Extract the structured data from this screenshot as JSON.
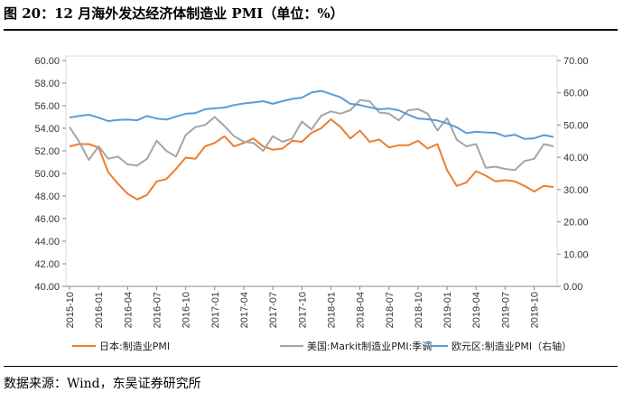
{
  "header": {
    "title": "图 20：12 月海外发达经济体制造业 PMI（单位：%）"
  },
  "footer": {
    "source": "数据来源：Wind，东吴证券研究所"
  },
  "chart_data": {
    "type": "line",
    "title": "12 月海外发达经济体制造业 PMI",
    "x": [
      "2015-10",
      "2015-11",
      "2015-12",
      "2016-01",
      "2016-02",
      "2016-03",
      "2016-04",
      "2016-05",
      "2016-06",
      "2016-07",
      "2016-08",
      "2016-09",
      "2016-10",
      "2016-11",
      "2016-12",
      "2017-01",
      "2017-02",
      "2017-03",
      "2017-04",
      "2017-05",
      "2017-06",
      "2017-07",
      "2017-08",
      "2017-09",
      "2017-10",
      "2017-11",
      "2017-12",
      "2018-01",
      "2018-02",
      "2018-03",
      "2018-04",
      "2018-05",
      "2018-06",
      "2018-07",
      "2018-08",
      "2018-09",
      "2018-10",
      "2018-11",
      "2018-12",
      "2019-01",
      "2019-02",
      "2019-03",
      "2019-04",
      "2019-05",
      "2019-06",
      "2019-07",
      "2019-08",
      "2019-09",
      "2019-10",
      "2019-11",
      "2019-12"
    ],
    "x_ticks": [
      "2015-10",
      "2016-01",
      "2016-04",
      "2016-07",
      "2016-10",
      "2017-01",
      "2017-04",
      "2017-07",
      "2017-10",
      "2018-01",
      "2018-04",
      "2018-07",
      "2018-10",
      "2019-01",
      "2019-04",
      "2019-07",
      "2019-10"
    ],
    "left_axis": {
      "range": [
        40,
        60
      ],
      "ticks": [
        "40.00",
        "42.00",
        "44.00",
        "46.00",
        "48.00",
        "50.00",
        "52.00",
        "54.00",
        "56.00",
        "58.00",
        "60.00"
      ]
    },
    "right_axis": {
      "range": [
        0,
        70
      ],
      "ticks": [
        "0.00",
        "10.00",
        "20.00",
        "30.00",
        "40.00",
        "50.00",
        "60.00",
        "70.00"
      ]
    },
    "series": [
      {
        "name": "日本:制造业PMI",
        "axis": "left",
        "color": "#ED7D31",
        "values": [
          52.4,
          52.6,
          52.6,
          52.3,
          50.1,
          49.1,
          48.2,
          47.7,
          48.1,
          49.3,
          49.5,
          50.4,
          51.4,
          51.3,
          52.4,
          52.7,
          53.3,
          52.4,
          52.7,
          53.1,
          52.4,
          52.1,
          52.2,
          52.9,
          52.8,
          53.6,
          54.0,
          54.8,
          54.1,
          53.1,
          53.8,
          52.8,
          53.0,
          52.3,
          52.5,
          52.5,
          52.9,
          52.2,
          52.6,
          50.3,
          48.9,
          49.2,
          50.2,
          49.8,
          49.3,
          49.4,
          49.3,
          48.9,
          48.4,
          48.9,
          48.8
        ]
      },
      {
        "name": "美国:Markit制造业PMI:季调",
        "axis": "left",
        "color": "#A5A5A5",
        "values": [
          54.1,
          52.8,
          51.2,
          52.4,
          51.3,
          51.5,
          50.8,
          50.7,
          51.3,
          52.9,
          52.0,
          51.5,
          53.4,
          54.1,
          54.3,
          55.0,
          54.2,
          53.3,
          52.8,
          52.7,
          52.0,
          53.3,
          52.8,
          53.1,
          54.6,
          53.9,
          55.1,
          55.5,
          55.3,
          55.6,
          56.5,
          56.4,
          55.4,
          55.3,
          54.7,
          55.6,
          55.7,
          55.3,
          53.8,
          54.9,
          53.0,
          52.4,
          52.6,
          50.5,
          50.6,
          50.4,
          50.3,
          51.1,
          51.3,
          52.6,
          52.4
        ]
      },
      {
        "name": "欧元区:制造业PMI（右轴）",
        "axis": "right",
        "color": "#5B9BD5",
        "values": [
          52.3,
          52.8,
          53.2,
          52.3,
          51.2,
          51.6,
          51.7,
          51.5,
          52.8,
          52.0,
          51.7,
          52.6,
          53.5,
          53.7,
          54.9,
          55.2,
          55.4,
          56.2,
          56.7,
          57.0,
          57.4,
          56.6,
          57.4,
          58.1,
          58.5,
          60.1,
          60.6,
          59.6,
          58.6,
          56.6,
          56.2,
          55.5,
          54.9,
          55.1,
          54.6,
          53.2,
          52.0,
          51.8,
          51.4,
          50.5,
          49.3,
          47.5,
          47.9,
          47.7,
          47.6,
          46.5,
          47.0,
          45.7,
          45.9,
          46.9,
          46.3
        ]
      }
    ],
    "legend_position": "bottom",
    "grid": false
  }
}
